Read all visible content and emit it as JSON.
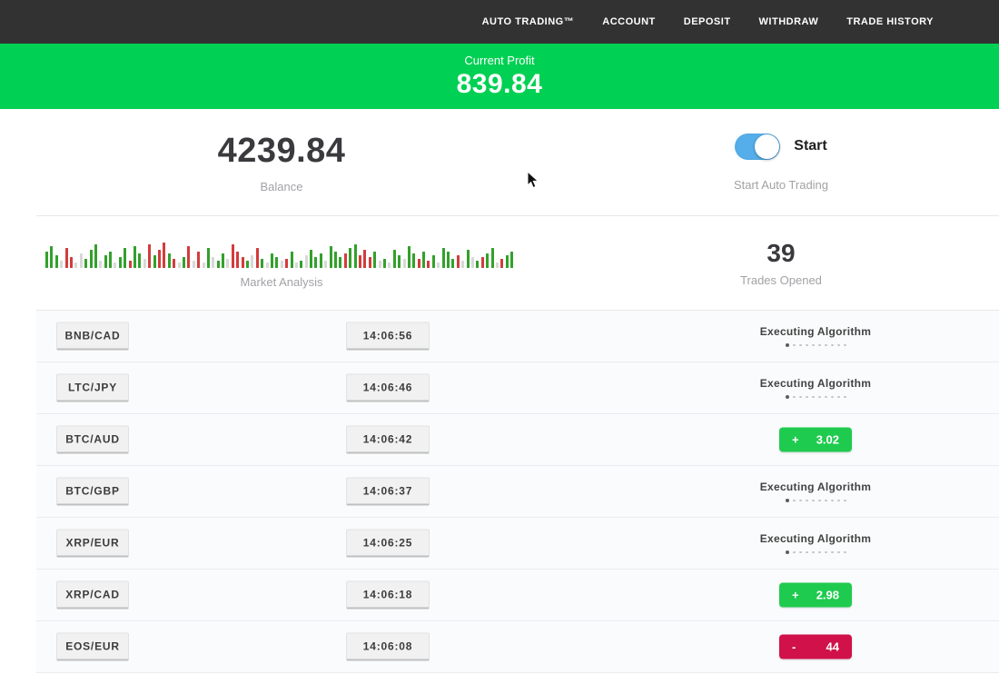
{
  "nav": {
    "items": [
      {
        "label": "AUTO TRADING™"
      },
      {
        "label": "ACCOUNT"
      },
      {
        "label": "DEPOSIT"
      },
      {
        "label": "WITHDRAW"
      },
      {
        "label": "TRADE HISTORY"
      }
    ]
  },
  "profit_banner": {
    "label": "Current Profit",
    "value": "839.84"
  },
  "balance": {
    "value": "4239.84",
    "label": "Balance"
  },
  "auto_trading": {
    "toggle_label": "Start",
    "caption": "Start Auto Trading",
    "toggle_on": true
  },
  "market": {
    "label": "Market Analysis"
  },
  "trades_opened": {
    "value": "39",
    "label": "Trades Opened"
  },
  "colors": {
    "navbar_bg": "#323232",
    "banner_green": "#00d053",
    "badge_green": "#1fcb4f",
    "badge_red": "#d0114a",
    "toggle_blue": "#55aee9"
  },
  "chart_data": {
    "type": "bar",
    "title": "Market Analysis",
    "xlabel": "",
    "ylabel": "",
    "legend": false,
    "grid": false,
    "note": "decorative market-activity strip; bars = [height_px, color g=green r=red l=gray]",
    "color_map": {
      "g": "#33a02c",
      "r": "#d23c3c",
      "l": "#d8d8d8"
    },
    "bars": [
      [
        18,
        "g"
      ],
      [
        24,
        "g"
      ],
      [
        14,
        "g"
      ],
      [
        8,
        "l"
      ],
      [
        22,
        "r"
      ],
      [
        12,
        "r"
      ],
      [
        6,
        "l"
      ],
      [
        16,
        "l"
      ],
      [
        10,
        "g"
      ],
      [
        20,
        "g"
      ],
      [
        26,
        "g"
      ],
      [
        8,
        "l"
      ],
      [
        14,
        "g"
      ],
      [
        18,
        "g"
      ],
      [
        6,
        "l"
      ],
      [
        12,
        "g"
      ],
      [
        22,
        "g"
      ],
      [
        8,
        "r"
      ],
      [
        24,
        "g"
      ],
      [
        16,
        "g"
      ],
      [
        10,
        "l"
      ],
      [
        26,
        "r"
      ],
      [
        14,
        "g"
      ],
      [
        20,
        "r"
      ],
      [
        28,
        "r"
      ],
      [
        16,
        "g"
      ],
      [
        10,
        "r"
      ],
      [
        6,
        "l"
      ],
      [
        12,
        "g"
      ],
      [
        24,
        "r"
      ],
      [
        8,
        "l"
      ],
      [
        18,
        "r"
      ],
      [
        6,
        "l"
      ],
      [
        22,
        "g"
      ],
      [
        12,
        "l"
      ],
      [
        8,
        "g"
      ],
      [
        16,
        "g"
      ],
      [
        10,
        "l"
      ],
      [
        26,
        "r"
      ],
      [
        18,
        "r"
      ],
      [
        12,
        "r"
      ],
      [
        8,
        "g"
      ],
      [
        14,
        "l"
      ],
      [
        22,
        "r"
      ],
      [
        10,
        "g"
      ],
      [
        6,
        "l"
      ],
      [
        16,
        "g"
      ],
      [
        12,
        "g"
      ],
      [
        8,
        "l"
      ],
      [
        10,
        "r"
      ],
      [
        18,
        "g"
      ],
      [
        6,
        "l"
      ],
      [
        8,
        "g"
      ],
      [
        14,
        "l"
      ],
      [
        20,
        "g"
      ],
      [
        12,
        "g"
      ],
      [
        16,
        "g"
      ],
      [
        8,
        "l"
      ],
      [
        24,
        "g"
      ],
      [
        18,
        "g"
      ],
      [
        12,
        "g"
      ],
      [
        16,
        "r"
      ],
      [
        22,
        "g"
      ],
      [
        26,
        "g"
      ],
      [
        14,
        "r"
      ],
      [
        20,
        "r"
      ],
      [
        12,
        "r"
      ],
      [
        18,
        "g"
      ],
      [
        8,
        "l"
      ],
      [
        10,
        "g"
      ],
      [
        6,
        "l"
      ],
      [
        20,
        "g"
      ],
      [
        14,
        "g"
      ],
      [
        10,
        "l"
      ],
      [
        24,
        "g"
      ],
      [
        16,
        "g"
      ],
      [
        10,
        "r"
      ],
      [
        18,
        "g"
      ],
      [
        8,
        "r"
      ],
      [
        14,
        "g"
      ],
      [
        6,
        "l"
      ],
      [
        22,
        "g"
      ],
      [
        18,
        "g"
      ],
      [
        10,
        "g"
      ],
      [
        14,
        "r"
      ],
      [
        8,
        "l"
      ],
      [
        20,
        "g"
      ],
      [
        12,
        "l"
      ],
      [
        8,
        "g"
      ],
      [
        12,
        "r"
      ],
      [
        16,
        "g"
      ],
      [
        22,
        "g"
      ],
      [
        6,
        "l"
      ],
      [
        10,
        "r"
      ],
      [
        14,
        "g"
      ],
      [
        18,
        "g"
      ]
    ]
  },
  "trades": [
    {
      "pair": "BNB/CAD",
      "time": "14:06:56",
      "status": "executing",
      "status_label": "Executing Algorithm",
      "dots": 10
    },
    {
      "pair": "LTC/JPY",
      "time": "14:06:46",
      "status": "executing",
      "status_label": "Executing Algorithm",
      "dots": 10
    },
    {
      "pair": "BTC/AUD",
      "time": "14:06:42",
      "status": "profit",
      "sign": "+",
      "value": "3.02"
    },
    {
      "pair": "BTC/GBP",
      "time": "14:06:37",
      "status": "executing",
      "status_label": "Executing Algorithm",
      "dots": 10
    },
    {
      "pair": "XRP/EUR",
      "time": "14:06:25",
      "status": "executing",
      "status_label": "Executing Algorithm",
      "dots": 10
    },
    {
      "pair": "XRP/CAD",
      "time": "14:06:18",
      "status": "profit",
      "sign": "+",
      "value": "2.98"
    },
    {
      "pair": "EOS/EUR",
      "time": "14:06:08",
      "status": "loss",
      "sign": "-",
      "value": "44"
    }
  ]
}
